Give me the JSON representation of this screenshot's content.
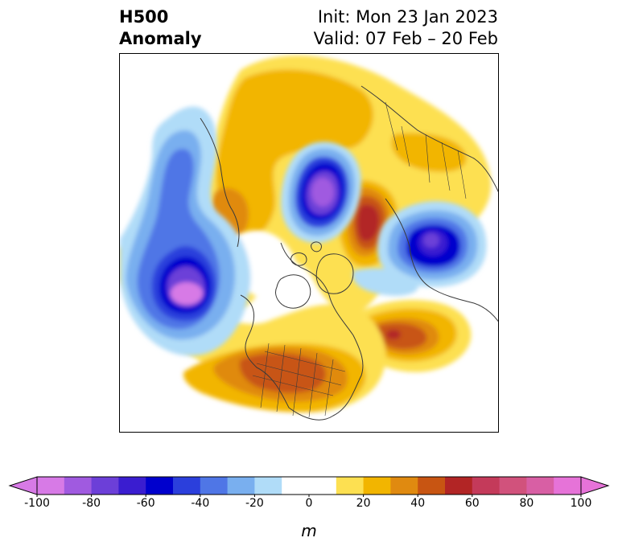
{
  "title": {
    "left_line1": "H500",
    "left_line2": "Anomaly",
    "init": "Init: Mon 23 Jan 2023",
    "valid": "Valid: 07 Feb – 20 Feb"
  },
  "colorbar": {
    "unit": "m",
    "min": -100,
    "max": 100,
    "step": 10,
    "extend": "both",
    "tick_labels": [
      "-100",
      "-80",
      "-60",
      "-40",
      "-20",
      "0",
      "20",
      "40",
      "60",
      "80",
      "100"
    ],
    "colors": [
      "#d77ae6",
      "#a05ae0",
      "#6c3fd8",
      "#3a1dd0",
      "#0000cd",
      "#2b3fdc",
      "#4f76e6",
      "#79afef",
      "#b0dcf8",
      "#ffffff",
      "#ffffff",
      "#fde051",
      "#f2b500",
      "#e08a10",
      "#c85512",
      "#b22525",
      "#c43a5a",
      "#d1527c",
      "#d85fa4",
      "#e673d8"
    ],
    "under_color": "#d77ae6",
    "over_color": "#e673d8"
  },
  "map": {
    "projection": "north-polar-stereographic",
    "features": [
      "coastlines",
      "country-borders",
      "us-state-borders"
    ],
    "anomaly_centers": [
      {
        "region": "northeast Pacific / Gulf of Alaska",
        "sign": "negative",
        "value": -100
      },
      {
        "region": "western Siberia / Kara Sea",
        "sign": "negative",
        "value": -90
      },
      {
        "region": "Scandinavia / Barents Sea",
        "sign": "negative",
        "value": -70
      },
      {
        "region": "central Arctic / Greenland",
        "sign": "positive",
        "value": 50
      },
      {
        "region": "North Atlantic",
        "sign": "positive",
        "value": 60
      },
      {
        "region": "southern United States",
        "sign": "positive",
        "value": 40
      },
      {
        "region": "eastern Siberia",
        "sign": "positive",
        "value": 30
      }
    ]
  }
}
